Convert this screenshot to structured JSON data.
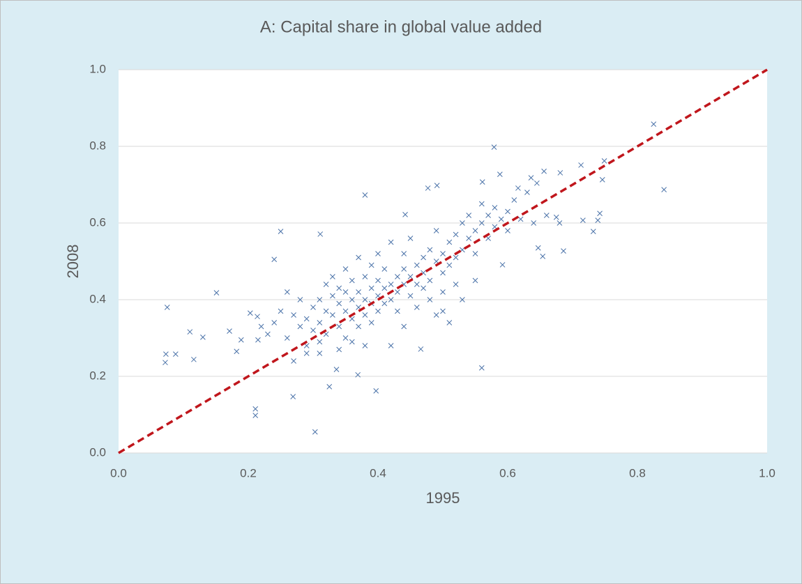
{
  "chart_data": {
    "type": "scatter",
    "title": "A: Capital share in global value added",
    "x_label": "1995",
    "y_label": "2008",
    "marker_color": "#4a72a8",
    "grid": true,
    "xlim": [
      0,
      1
    ],
    "ylim": [
      0,
      1
    ],
    "xticks": [
      {
        "value": 0,
        "label": "0.0"
      },
      0.2,
      0.4,
      0.6,
      0.8,
      {
        "value": 1,
        "label": "1.0"
      }
    ],
    "yticks": [
      {
        "value": 0,
        "label": "0.0"
      },
      0.2,
      0.4,
      0.6,
      0.8,
      {
        "value": 1,
        "label": "1.0"
      }
    ],
    "x": [
      0.072,
      0.073,
      0.075,
      0.088,
      0.11,
      0.116,
      0.13,
      0.151,
      0.171,
      0.182,
      0.189,
      0.203,
      0.211,
      0.211,
      0.214,
      0.215,
      0.24,
      0.25,
      0.269,
      0.303,
      0.311,
      0.325,
      0.336,
      0.369,
      0.38,
      0.397,
      0.442,
      0.466,
      0.56,
      0.579,
      0.477,
      0.491,
      0.561,
      0.825,
      0.841,
      0.713,
      0.749,
      0.746,
      0.732,
      0.686,
      0.654,
      0.647,
      0.592,
      0.588,
      0.656,
      0.681,
      0.636,
      0.645,
      0.616,
      0.716,
      0.742,
      0.739,
      0.675,
      0.26,
      0.27,
      0.28,
      0.28,
      0.29,
      0.29,
      0.3,
      0.3,
      0.31,
      0.31,
      0.31,
      0.32,
      0.32,
      0.32,
      0.33,
      0.33,
      0.33,
      0.34,
      0.34,
      0.34,
      0.35,
      0.35,
      0.35,
      0.35,
      0.36,
      0.36,
      0.36,
      0.37,
      0.37,
      0.37,
      0.37,
      0.38,
      0.38,
      0.38,
      0.39,
      0.39,
      0.39,
      0.39,
      0.4,
      0.4,
      0.4,
      0.4,
      0.41,
      0.41,
      0.41,
      0.42,
      0.42,
      0.42,
      0.43,
      0.43,
      0.43,
      0.44,
      0.44,
      0.44,
      0.45,
      0.45,
      0.45,
      0.46,
      0.46,
      0.46,
      0.47,
      0.47,
      0.47,
      0.48,
      0.48,
      0.48,
      0.49,
      0.49,
      0.49,
      0.5,
      0.5,
      0.5,
      0.51,
      0.51,
      0.51,
      0.52,
      0.52,
      0.52,
      0.53,
      0.53,
      0.53,
      0.54,
      0.54,
      0.55,
      0.55,
      0.55,
      0.56,
      0.56,
      0.57,
      0.57,
      0.58,
      0.58,
      0.59,
      0.6,
      0.6,
      0.61,
      0.62,
      0.63,
      0.64,
      0.66,
      0.68,
      0.24,
      0.22,
      0.23,
      0.25,
      0.26,
      0.27,
      0.29,
      0.31,
      0.34,
      0.36,
      0.38,
      0.42,
      0.44,
      0.5
    ],
    "values": [
      0.236,
      0.258,
      0.38,
      0.258,
      0.316,
      0.244,
      0.302,
      0.418,
      0.318,
      0.265,
      0.295,
      0.365,
      0.115,
      0.098,
      0.356,
      0.295,
      0.505,
      0.578,
      0.147,
      0.055,
      0.571,
      0.173,
      0.218,
      0.204,
      0.673,
      0.162,
      0.622,
      0.271,
      0.222,
      0.798,
      0.691,
      0.698,
      0.707,
      0.858,
      0.687,
      0.751,
      0.762,
      0.713,
      0.578,
      0.527,
      0.513,
      0.535,
      0.491,
      0.727,
      0.735,
      0.731,
      0.718,
      0.704,
      0.691,
      0.607,
      0.625,
      0.607,
      0.615,
      0.3,
      0.36,
      0.33,
      0.4,
      0.35,
      0.28,
      0.38,
      0.32,
      0.4,
      0.34,
      0.29,
      0.37,
      0.44,
      0.31,
      0.36,
      0.41,
      0.46,
      0.33,
      0.39,
      0.43,
      0.37,
      0.3,
      0.48,
      0.42,
      0.4,
      0.35,
      0.45,
      0.38,
      0.42,
      0.33,
      0.51,
      0.4,
      0.36,
      0.46,
      0.43,
      0.39,
      0.34,
      0.49,
      0.41,
      0.45,
      0.37,
      0.52,
      0.43,
      0.39,
      0.48,
      0.44,
      0.4,
      0.55,
      0.46,
      0.42,
      0.37,
      0.48,
      0.44,
      0.52,
      0.46,
      0.41,
      0.56,
      0.49,
      0.44,
      0.38,
      0.51,
      0.47,
      0.43,
      0.53,
      0.45,
      0.4,
      0.5,
      0.58,
      0.36,
      0.52,
      0.47,
      0.42,
      0.55,
      0.49,
      0.34,
      0.57,
      0.51,
      0.44,
      0.6,
      0.53,
      0.4,
      0.62,
      0.56,
      0.58,
      0.52,
      0.45,
      0.6,
      0.65,
      0.62,
      0.56,
      0.59,
      0.64,
      0.61,
      0.63,
      0.58,
      0.66,
      0.61,
      0.68,
      0.6,
      0.62,
      0.6,
      0.34,
      0.33,
      0.31,
      0.37,
      0.42,
      0.24,
      0.26,
      0.26,
      0.27,
      0.29,
      0.28,
      0.28,
      0.33,
      0.37
    ],
    "reference_line": {
      "x": [
        0,
        1
      ],
      "values": [
        0,
        1
      ],
      "color": "#c0161c"
    }
  }
}
